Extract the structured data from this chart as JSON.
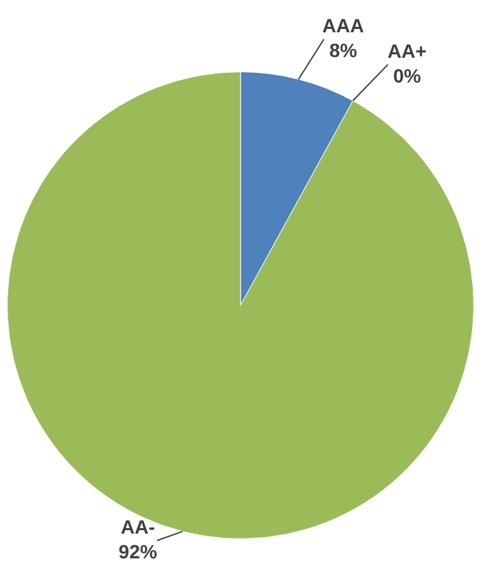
{
  "chart_data": {
    "type": "pie",
    "categories": [
      "AAA",
      "AA+",
      "AA-"
    ],
    "values": [
      8,
      0,
      92
    ],
    "colors": [
      "#4f81bd",
      "#c0504d",
      "#9bbb59"
    ],
    "value_labels": [
      "8%",
      "0%",
      "92%"
    ],
    "legend": false
  }
}
